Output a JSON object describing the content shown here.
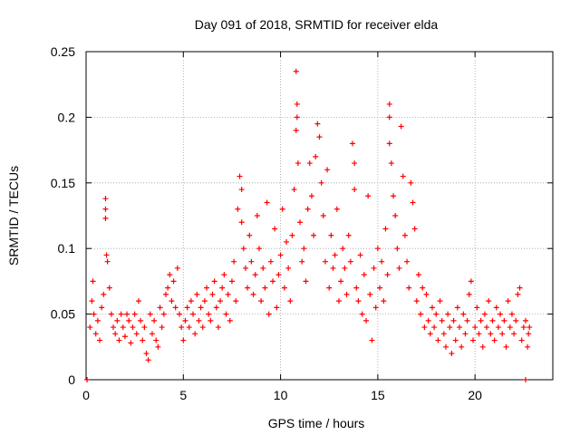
{
  "chart_data": {
    "type": "scatter",
    "title": "Day 091 of 2018, SRMTID for receiver elda",
    "xlabel": "GPS time / hours",
    "ylabel": "SRMTID / TECUs",
    "xlim": [
      0,
      24
    ],
    "ylim": [
      0,
      0.25
    ],
    "x_ticks": [
      0,
      5,
      10,
      15,
      20
    ],
    "x_tick_labels": [
      "0",
      "5",
      "10",
      "15",
      "20"
    ],
    "y_ticks": [
      0,
      0.05,
      0.1,
      0.15,
      0.2,
      0.25
    ],
    "y_tick_labels": [
      "0",
      "0.05",
      "0.1",
      "0.15",
      "0.2",
      "0.25"
    ],
    "grid": true,
    "marker": "+",
    "color": "#ff0000",
    "series": [
      {
        "name": "SRMTID",
        "points": [
          [
            0.05,
            0.0
          ],
          [
            22.6,
            0.0
          ],
          [
            0.2,
            0.04
          ],
          [
            0.3,
            0.06
          ],
          [
            0.35,
            0.075
          ],
          [
            0.4,
            0.05
          ],
          [
            0.5,
            0.035
          ],
          [
            0.6,
            0.045
          ],
          [
            0.7,
            0.03
          ],
          [
            0.8,
            0.055
          ],
          [
            0.9,
            0.065
          ],
          [
            1.0,
            0.138
          ],
          [
            1.0,
            0.13
          ],
          [
            1.0,
            0.123
          ],
          [
            1.05,
            0.095
          ],
          [
            1.1,
            0.09
          ],
          [
            1.2,
            0.07
          ],
          [
            1.3,
            0.05
          ],
          [
            1.4,
            0.04
          ],
          [
            1.5,
            0.035
          ],
          [
            1.6,
            0.045
          ],
          [
            1.7,
            0.03
          ],
          [
            1.8,
            0.05
          ],
          [
            1.9,
            0.04
          ],
          [
            2.0,
            0.033
          ],
          [
            2.1,
            0.05
          ],
          [
            2.2,
            0.045
          ],
          [
            2.3,
            0.028
          ],
          [
            2.4,
            0.04
          ],
          [
            2.5,
            0.05
          ],
          [
            2.6,
            0.035
          ],
          [
            2.7,
            0.06
          ],
          [
            2.8,
            0.045
          ],
          [
            2.9,
            0.03
          ],
          [
            3.0,
            0.04
          ],
          [
            3.1,
            0.02
          ],
          [
            3.2,
            0.015
          ],
          [
            3.3,
            0.05
          ],
          [
            3.4,
            0.035
          ],
          [
            3.5,
            0.045
          ],
          [
            3.6,
            0.03
          ],
          [
            3.7,
            0.025
          ],
          [
            3.8,
            0.055
          ],
          [
            3.9,
            0.04
          ],
          [
            4.0,
            0.05
          ],
          [
            4.1,
            0.065
          ],
          [
            4.2,
            0.07
          ],
          [
            4.3,
            0.08
          ],
          [
            4.4,
            0.06
          ],
          [
            4.5,
            0.075
          ],
          [
            4.6,
            0.055
          ],
          [
            4.7,
            0.085
          ],
          [
            4.8,
            0.05
          ],
          [
            4.9,
            0.04
          ],
          [
            5.0,
            0.03
          ],
          [
            5.1,
            0.045
          ],
          [
            5.2,
            0.055
          ],
          [
            5.3,
            0.04
          ],
          [
            5.4,
            0.06
          ],
          [
            5.5,
            0.05
          ],
          [
            5.6,
            0.035
          ],
          [
            5.7,
            0.065
          ],
          [
            5.8,
            0.045
          ],
          [
            5.9,
            0.055
          ],
          [
            6.0,
            0.04
          ],
          [
            6.1,
            0.06
          ],
          [
            6.2,
            0.07
          ],
          [
            6.3,
            0.05
          ],
          [
            6.4,
            0.045
          ],
          [
            6.5,
            0.065
          ],
          [
            6.6,
            0.075
          ],
          [
            6.7,
            0.055
          ],
          [
            6.8,
            0.04
          ],
          [
            6.9,
            0.06
          ],
          [
            7.0,
            0.07
          ],
          [
            7.1,
            0.08
          ],
          [
            7.2,
            0.05
          ],
          [
            7.3,
            0.065
          ],
          [
            7.4,
            0.045
          ],
          [
            7.5,
            0.075
          ],
          [
            7.6,
            0.09
          ],
          [
            7.7,
            0.06
          ],
          [
            7.8,
            0.13
          ],
          [
            7.9,
            0.155
          ],
          [
            8.0,
            0.12
          ],
          [
            8.0,
            0.145
          ],
          [
            8.1,
            0.1
          ],
          [
            8.2,
            0.085
          ],
          [
            8.3,
            0.07
          ],
          [
            8.4,
            0.11
          ],
          [
            8.5,
            0.09
          ],
          [
            8.6,
            0.065
          ],
          [
            8.7,
            0.08
          ],
          [
            8.8,
            0.125
          ],
          [
            8.9,
            0.1
          ],
          [
            9.0,
            0.06
          ],
          [
            9.1,
            0.085
          ],
          [
            9.2,
            0.07
          ],
          [
            9.3,
            0.135
          ],
          [
            9.4,
            0.05
          ],
          [
            9.5,
            0.09
          ],
          [
            9.6,
            0.075
          ],
          [
            9.7,
            0.115
          ],
          [
            9.8,
            0.055
          ],
          [
            9.9,
            0.08
          ],
          [
            10.0,
            0.095
          ],
          [
            10.1,
            0.13
          ],
          [
            10.2,
            0.07
          ],
          [
            10.3,
            0.105
          ],
          [
            10.4,
            0.085
          ],
          [
            10.5,
            0.06
          ],
          [
            10.6,
            0.11
          ],
          [
            10.7,
            0.145
          ],
          [
            10.8,
            0.235
          ],
          [
            10.85,
            0.21
          ],
          [
            10.85,
            0.2
          ],
          [
            10.8,
            0.19
          ],
          [
            10.9,
            0.165
          ],
          [
            11.0,
            0.12
          ],
          [
            11.1,
            0.09
          ],
          [
            11.2,
            0.1
          ],
          [
            11.3,
            0.075
          ],
          [
            11.4,
            0.13
          ],
          [
            11.5,
            0.165
          ],
          [
            11.6,
            0.14
          ],
          [
            11.7,
            0.11
          ],
          [
            11.8,
            0.17
          ],
          [
            11.9,
            0.195
          ],
          [
            12.0,
            0.185
          ],
          [
            12.1,
            0.15
          ],
          [
            12.2,
            0.125
          ],
          [
            12.3,
            0.09
          ],
          [
            12.4,
            0.16
          ],
          [
            12.5,
            0.07
          ],
          [
            12.6,
            0.11
          ],
          [
            12.7,
            0.085
          ],
          [
            12.8,
            0.095
          ],
          [
            12.9,
            0.13
          ],
          [
            13.0,
            0.06
          ],
          [
            13.1,
            0.075
          ],
          [
            13.2,
            0.1
          ],
          [
            13.3,
            0.085
          ],
          [
            13.4,
            0.065
          ],
          [
            13.5,
            0.11
          ],
          [
            13.6,
            0.09
          ],
          [
            13.7,
            0.18
          ],
          [
            13.8,
            0.165
          ],
          [
            13.8,
            0.145
          ],
          [
            13.9,
            0.07
          ],
          [
            14.0,
            0.06
          ],
          [
            14.1,
            0.095
          ],
          [
            14.2,
            0.05
          ],
          [
            14.3,
            0.08
          ],
          [
            14.4,
            0.045
          ],
          [
            14.5,
            0.14
          ],
          [
            14.6,
            0.065
          ],
          [
            14.7,
            0.03
          ],
          [
            14.8,
            0.085
          ],
          [
            14.9,
            0.055
          ],
          [
            15.0,
            0.1
          ],
          [
            15.1,
            0.07
          ],
          [
            15.2,
            0.09
          ],
          [
            15.3,
            0.06
          ],
          [
            15.4,
            0.115
          ],
          [
            15.5,
            0.08
          ],
          [
            15.6,
            0.21
          ],
          [
            15.6,
            0.2
          ],
          [
            15.6,
            0.18
          ],
          [
            15.7,
            0.165
          ],
          [
            15.8,
            0.14
          ],
          [
            15.9,
            0.125
          ],
          [
            16.0,
            0.1
          ],
          [
            16.1,
            0.085
          ],
          [
            16.2,
            0.193
          ],
          [
            16.3,
            0.155
          ],
          [
            16.4,
            0.11
          ],
          [
            16.5,
            0.09
          ],
          [
            16.6,
            0.07
          ],
          [
            16.7,
            0.15
          ],
          [
            16.8,
            0.135
          ],
          [
            16.9,
            0.115
          ],
          [
            17.0,
            0.06
          ],
          [
            17.1,
            0.08
          ],
          [
            17.2,
            0.05
          ],
          [
            17.3,
            0.07
          ],
          [
            17.4,
            0.04
          ],
          [
            17.5,
            0.065
          ],
          [
            17.6,
            0.045
          ],
          [
            17.7,
            0.035
          ],
          [
            17.8,
            0.055
          ],
          [
            17.9,
            0.04
          ],
          [
            18.0,
            0.05
          ],
          [
            18.1,
            0.03
          ],
          [
            18.2,
            0.06
          ],
          [
            18.3,
            0.045
          ],
          [
            18.4,
            0.035
          ],
          [
            18.5,
            0.025
          ],
          [
            18.6,
            0.05
          ],
          [
            18.7,
            0.04
          ],
          [
            18.8,
            0.02
          ],
          [
            18.9,
            0.045
          ],
          [
            19.0,
            0.03
          ],
          [
            19.1,
            0.055
          ],
          [
            19.2,
            0.04
          ],
          [
            19.3,
            0.025
          ],
          [
            19.4,
            0.05
          ],
          [
            19.5,
            0.035
          ],
          [
            19.6,
            0.045
          ],
          [
            19.7,
            0.065
          ],
          [
            19.8,
            0.075
          ],
          [
            19.9,
            0.03
          ],
          [
            20.0,
            0.04
          ],
          [
            20.1,
            0.055
          ],
          [
            20.2,
            0.035
          ],
          [
            20.3,
            0.045
          ],
          [
            20.4,
            0.025
          ],
          [
            20.5,
            0.05
          ],
          [
            20.6,
            0.04
          ],
          [
            20.7,
            0.06
          ],
          [
            20.8,
            0.035
          ],
          [
            20.9,
            0.045
          ],
          [
            21.0,
            0.03
          ],
          [
            21.1,
            0.055
          ],
          [
            21.2,
            0.04
          ],
          [
            21.3,
            0.05
          ],
          [
            21.4,
            0.035
          ],
          [
            21.5,
            0.045
          ],
          [
            21.6,
            0.025
          ],
          [
            21.7,
            0.06
          ],
          [
            21.8,
            0.04
          ],
          [
            21.9,
            0.05
          ],
          [
            22.0,
            0.035
          ],
          [
            22.1,
            0.045
          ],
          [
            22.2,
            0.065
          ],
          [
            22.3,
            0.07
          ],
          [
            22.4,
            0.03
          ],
          [
            22.5,
            0.04
          ],
          [
            22.6,
            0.045
          ],
          [
            22.7,
            0.025
          ],
          [
            22.75,
            0.035
          ],
          [
            22.8,
            0.04
          ]
        ]
      }
    ]
  }
}
